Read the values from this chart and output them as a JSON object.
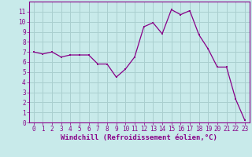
{
  "x": [
    0,
    1,
    2,
    3,
    4,
    5,
    6,
    7,
    8,
    9,
    10,
    11,
    12,
    13,
    14,
    15,
    16,
    17,
    18,
    19,
    20,
    21,
    22,
    23
  ],
  "y": [
    7.0,
    6.8,
    7.0,
    6.5,
    6.7,
    6.7,
    6.7,
    5.8,
    5.8,
    4.5,
    5.3,
    6.5,
    9.5,
    9.9,
    8.8,
    11.2,
    10.7,
    11.1,
    8.7,
    7.3,
    5.5,
    5.5,
    2.3,
    0.2
  ],
  "line_color": "#880088",
  "marker_color": "#880088",
  "bg_color": "#c8eaea",
  "grid_color": "#aacfcf",
  "xlabel": "Windchill (Refroidissement éolien,°C)",
  "xlim": [
    -0.5,
    23.5
  ],
  "ylim": [
    0,
    12
  ],
  "yticks": [
    0,
    1,
    2,
    3,
    4,
    5,
    6,
    7,
    8,
    9,
    10,
    11
  ],
  "xticks": [
    0,
    1,
    2,
    3,
    4,
    5,
    6,
    7,
    8,
    9,
    10,
    11,
    12,
    13,
    14,
    15,
    16,
    17,
    18,
    19,
    20,
    21,
    22,
    23
  ],
  "tick_fontsize": 5.5,
  "xlabel_fontsize": 6.5
}
